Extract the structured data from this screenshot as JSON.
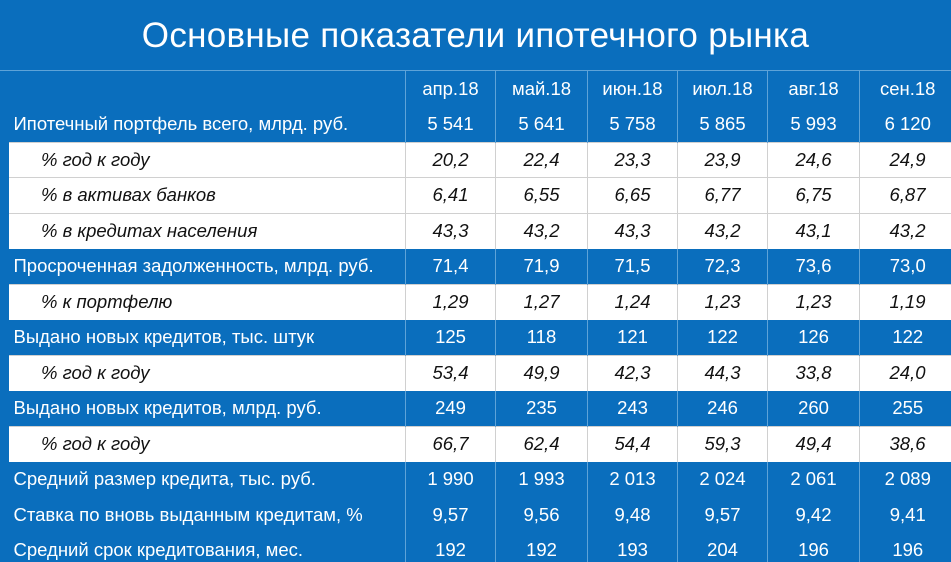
{
  "title": "Основные показатели ипотечного рынка",
  "columns": [
    "апр.18",
    "май.18",
    "июн.18",
    "июл.18",
    "авг.18",
    "сен.18"
  ],
  "rows": [
    {
      "type": "main",
      "label": "Ипотечный портфель всего, млрд. руб.",
      "values": [
        "5 541",
        "5 641",
        "5 758",
        "5 865",
        "5 993",
        "6 120"
      ]
    },
    {
      "type": "sub",
      "label": "% год к году",
      "values": [
        "20,2",
        "22,4",
        "23,3",
        "23,9",
        "24,6",
        "24,9"
      ]
    },
    {
      "type": "sub",
      "label": "% в активах банков",
      "values": [
        "6,41",
        "6,55",
        "6,65",
        "6,77",
        "6,75",
        "6,87"
      ]
    },
    {
      "type": "sub",
      "label": "% в кредитах населения",
      "values": [
        "43,3",
        "43,2",
        "43,3",
        "43,2",
        "43,1",
        "43,2"
      ]
    },
    {
      "type": "main",
      "label": "Просроченная задолженность, млрд. руб.",
      "values": [
        "71,4",
        "71,9",
        "71,5",
        "72,3",
        "73,6",
        "73,0"
      ]
    },
    {
      "type": "sub",
      "label": "% к портфелю",
      "values": [
        "1,29",
        "1,27",
        "1,24",
        "1,23",
        "1,23",
        "1,19"
      ]
    },
    {
      "type": "main",
      "label": "Выдано новых кредитов, тыс. штук",
      "values": [
        "125",
        "118",
        "121",
        "122",
        "126",
        "122"
      ]
    },
    {
      "type": "sub",
      "label": "% год к году",
      "values": [
        "53,4",
        "49,9",
        "42,3",
        "44,3",
        "33,8",
        "24,0"
      ]
    },
    {
      "type": "main",
      "label": "Выдано новых кредитов, млрд. руб.",
      "values": [
        "249",
        "235",
        "243",
        "246",
        "260",
        "255"
      ]
    },
    {
      "type": "sub",
      "label": "% год к году",
      "values": [
        "66,7",
        "62,4",
        "54,4",
        "59,3",
        "49,4",
        "38,6"
      ]
    },
    {
      "type": "main",
      "label": "Средний размер кредита, тыс. руб.",
      "values": [
        "1 990",
        "1 993",
        "2 013",
        "2 024",
        "2 061",
        "2 089"
      ]
    },
    {
      "type": "main",
      "label": "Ставка по вновь выданным кредитам, %",
      "values": [
        "9,57",
        "9,56",
        "9,48",
        "9,57",
        "9,42",
        "9,41"
      ]
    },
    {
      "type": "main",
      "label": "Средний срок кредитования, мес.",
      "values": [
        "192",
        "192",
        "193",
        "204",
        "196",
        "196"
      ]
    }
  ],
  "colors": {
    "background": "#0a6ebd",
    "sub_row_background": "#ffffff",
    "text_light": "#ffffff",
    "text_dark": "#111111"
  }
}
